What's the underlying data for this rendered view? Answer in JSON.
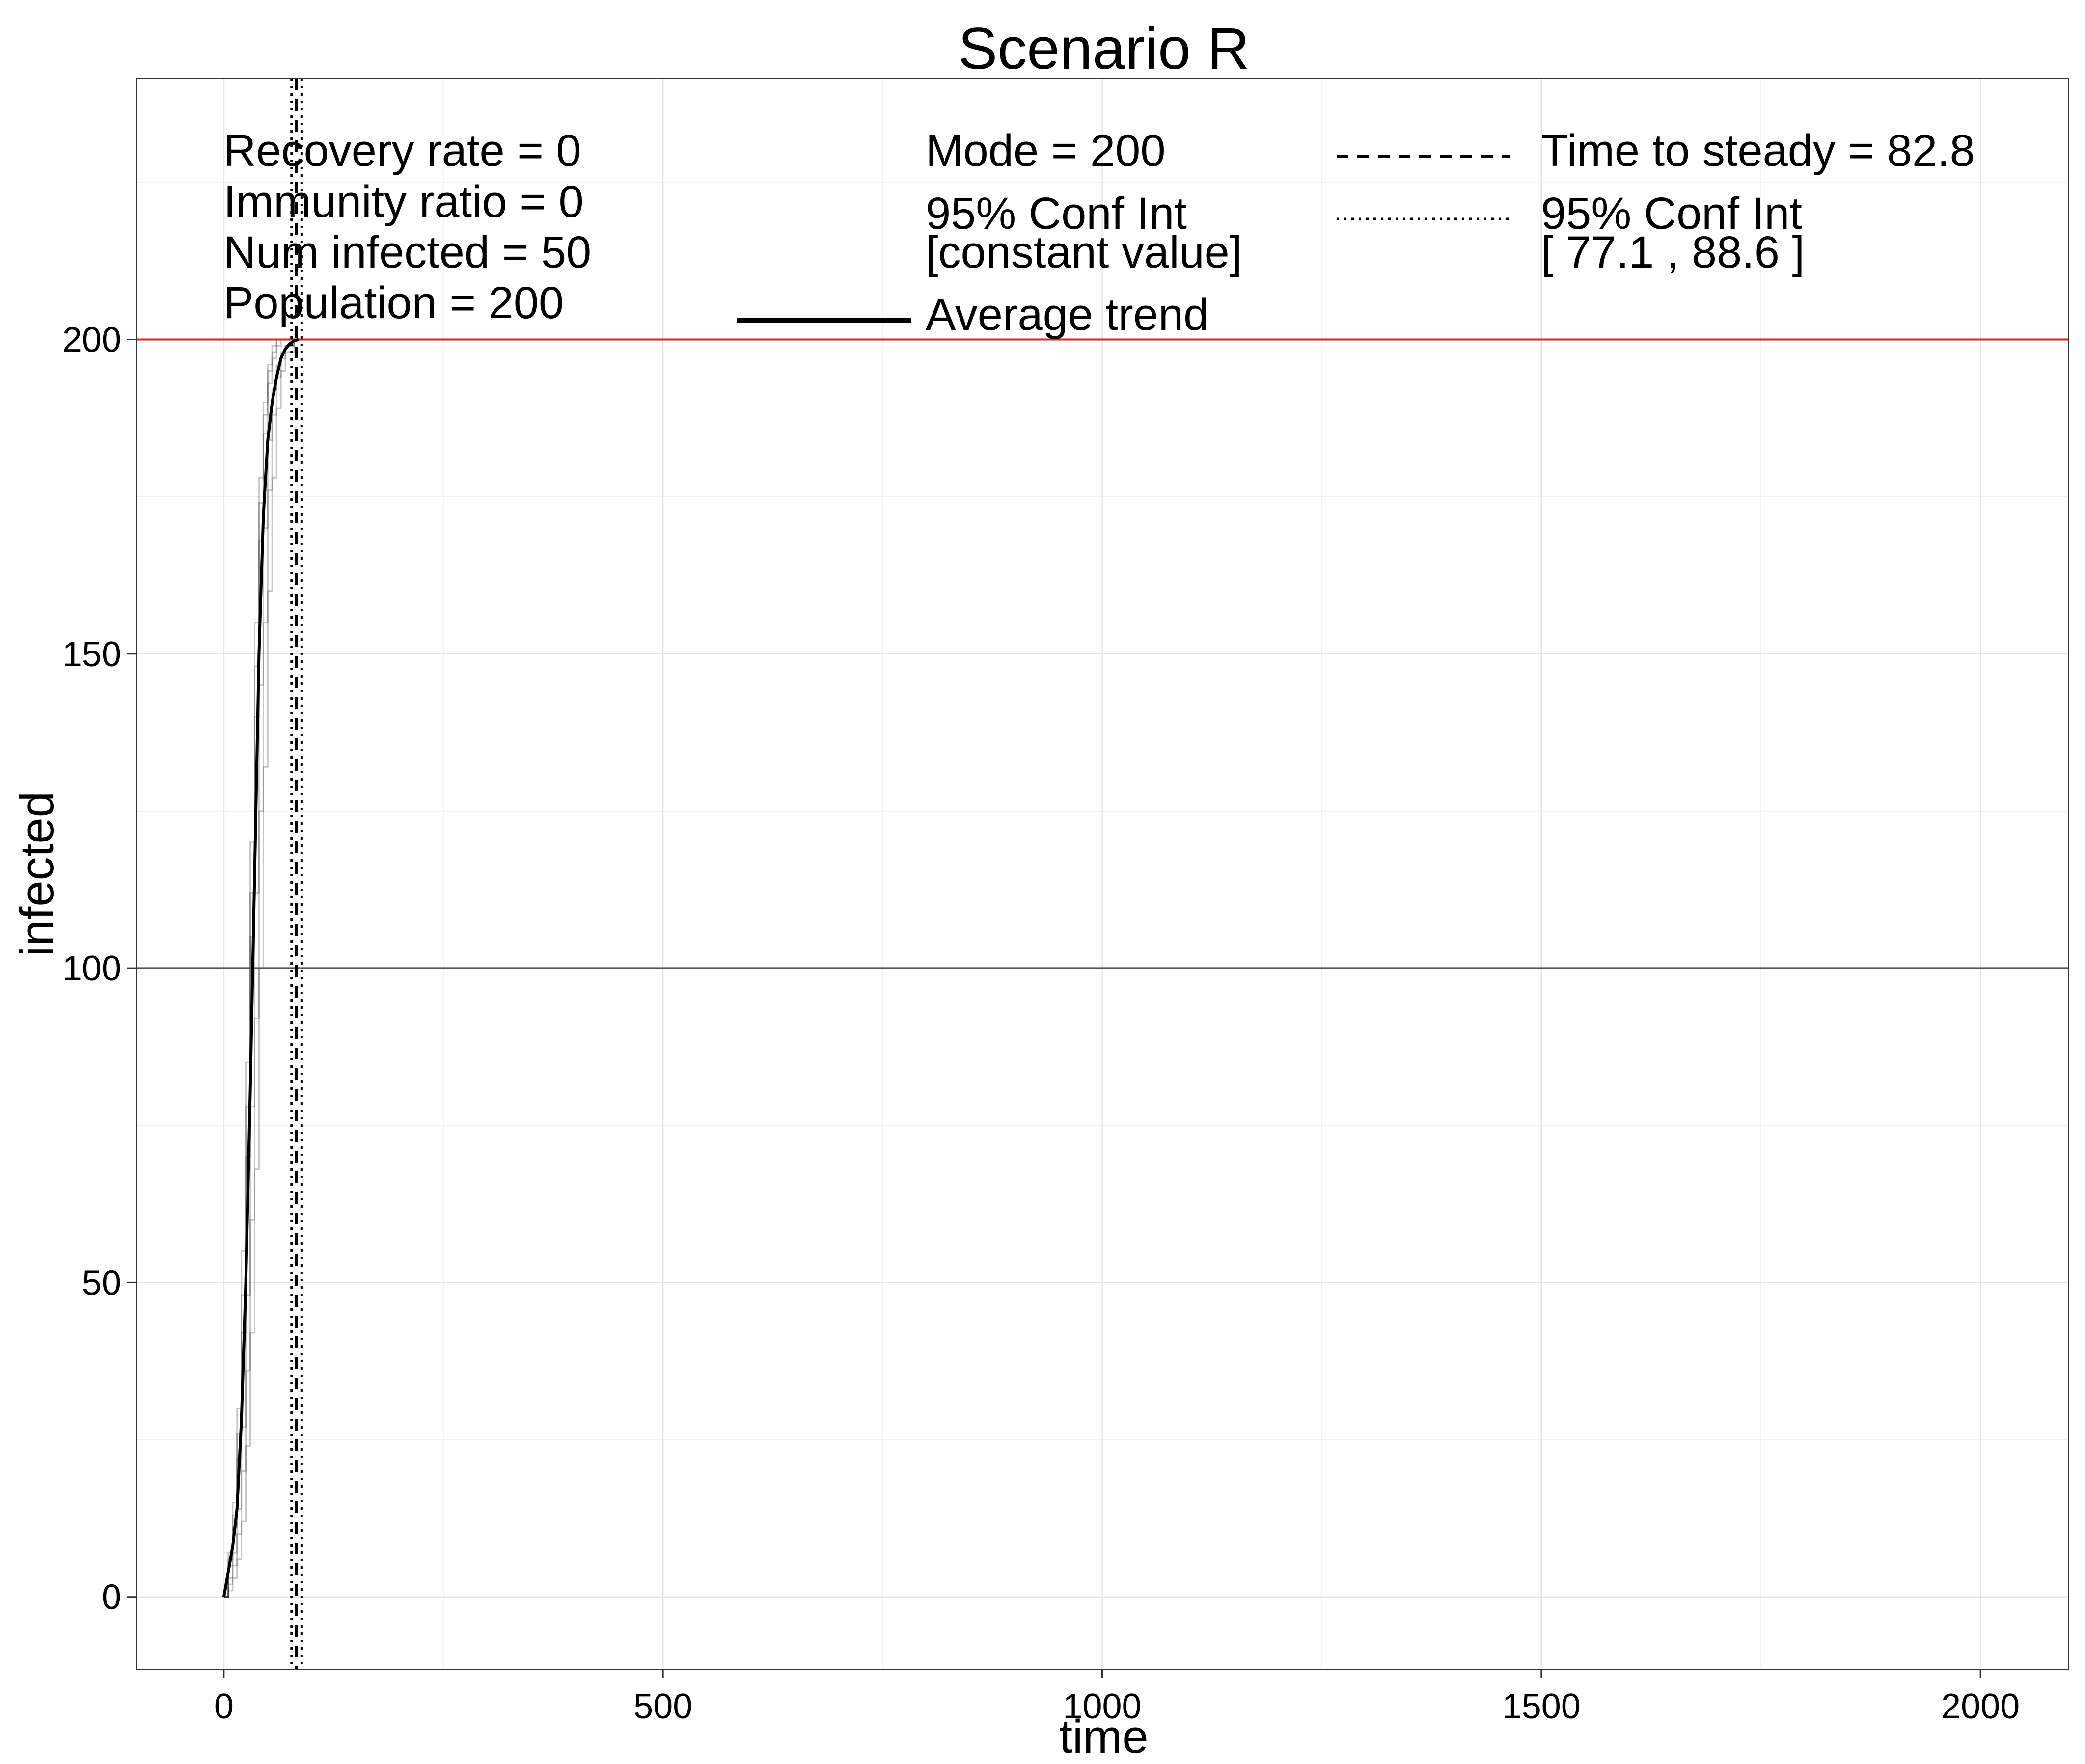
{
  "chart_data": {
    "type": "line",
    "title": "Scenario R",
    "xlabel": "time",
    "ylabel": "infected",
    "xlim": [
      -100,
      2100
    ],
    "ylim": [
      -11.5,
      241.5
    ],
    "x_ticks": [
      0,
      500,
      1000,
      1500,
      2000
    ],
    "x_tick_labels": [
      "0",
      "500",
      "1000",
      "1500",
      "2000"
    ],
    "y_ticks": [
      0,
      50,
      100,
      150,
      200
    ],
    "y_tick_labels": [
      "0",
      "50",
      "100",
      "150",
      "200"
    ],
    "x_minor_ticks": [
      250,
      750,
      1250,
      1750
    ],
    "y_minor_ticks": [
      25,
      75,
      125,
      175,
      225
    ],
    "grid": true,
    "reference_lines": {
      "population_hline": {
        "y": 200,
        "color": "#d62728"
      },
      "half_hline": {
        "y": 100,
        "color": "#555555"
      },
      "steady_time_vline": {
        "x": 82.8,
        "style": "dashed"
      },
      "ci_vlines": {
        "x": [
          77.1,
          88.6
        ],
        "style": "dotted"
      }
    },
    "average_trend": {
      "name": "Average trend",
      "x": [
        0,
        5,
        10,
        15,
        20,
        25,
        30,
        35,
        40,
        45,
        50,
        55,
        60,
        65,
        70,
        75,
        80,
        85
      ],
      "y": [
        0,
        4,
        8,
        14,
        28,
        50,
        80,
        115,
        150,
        172,
        184,
        190,
        194,
        197,
        198.5,
        199.3,
        199.8,
        200
      ]
    },
    "simulation_runs": [
      {
        "x": [
          0,
          5,
          10,
          15,
          20,
          25,
          30,
          35,
          40,
          45,
          50,
          55,
          60,
          65,
          70,
          80
        ],
        "y": [
          0,
          7,
          15,
          30,
          55,
          85,
          120,
          155,
          178,
          190,
          196,
          199,
          200,
          200,
          200,
          200
        ]
      },
      {
        "x": [
          0,
          5,
          10,
          15,
          20,
          25,
          30,
          35,
          40,
          45,
          50,
          55,
          60,
          65,
          70,
          80
        ],
        "y": [
          0,
          5,
          11,
          22,
          42,
          70,
          105,
          140,
          168,
          185,
          193,
          197,
          199,
          200,
          200,
          200
        ]
      },
      {
        "x": [
          0,
          5,
          10,
          15,
          20,
          25,
          30,
          35,
          40,
          45,
          50,
          55,
          60,
          65,
          70,
          80
        ],
        "y": [
          0,
          3,
          7,
          14,
          27,
          48,
          78,
          112,
          145,
          170,
          184,
          192,
          196,
          198,
          199,
          200
        ]
      },
      {
        "x": [
          0,
          5,
          10,
          15,
          20,
          25,
          30,
          35,
          40,
          45,
          50,
          55,
          60,
          65,
          70,
          80
        ],
        "y": [
          0,
          2,
          5,
          10,
          20,
          36,
          60,
          92,
          125,
          155,
          176,
          188,
          194,
          197,
          199,
          200
        ]
      },
      {
        "x": [
          0,
          5,
          10,
          15,
          20,
          25,
          30,
          35,
          40,
          45,
          50,
          55,
          60,
          65,
          70,
          80
        ],
        "y": [
          0,
          1,
          3,
          6,
          12,
          24,
          42,
          68,
          100,
          132,
          160,
          178,
          189,
          195,
          198,
          200
        ]
      },
      {
        "x": [
          0,
          5,
          10,
          15,
          20,
          25,
          30,
          35,
          40,
          45,
          50,
          55,
          60,
          65,
          70,
          80
        ],
        "y": [
          0,
          6,
          13,
          26,
          48,
          78,
          112,
          148,
          174,
          188,
          195,
          198,
          200,
          200,
          200,
          200
        ]
      }
    ],
    "annotations": {
      "params": [
        "Recovery rate = 0",
        "Immunity ratio = 0",
        "Num infected = 50",
        "Population = 200"
      ],
      "mode": "Mode = 200",
      "mode_ci_label": "95% Conf Int",
      "mode_ci_value": "[constant value]",
      "average_trend_label": "Average trend",
      "steady_label": "Time to steady = 82.8",
      "steady_ci_label": "95% Conf Int",
      "steady_ci_value": "[ 77.1 , 88.6 ]"
    }
  }
}
